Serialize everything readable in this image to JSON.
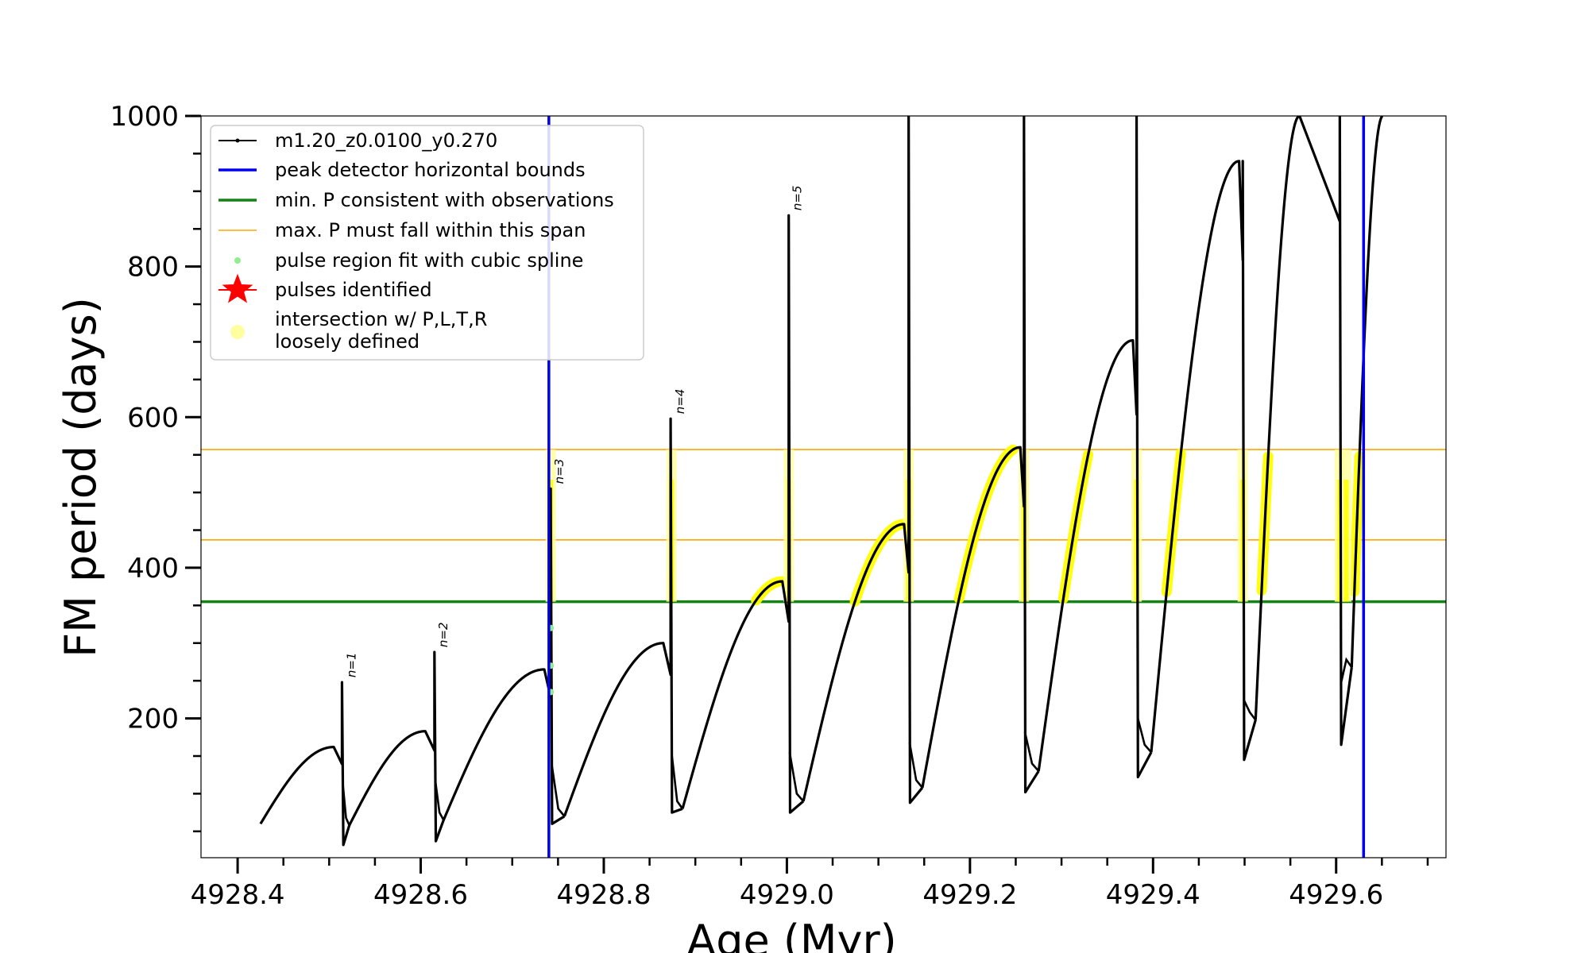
{
  "chart_data": {
    "type": "line",
    "xlabel": "Age (Myr)",
    "ylabel": "FM period (days)",
    "xlim": [
      4928.36,
      4929.72
    ],
    "ylim": [
      15,
      1000
    ],
    "x_ticks": [
      4928.4,
      4928.6,
      4928.8,
      4929.0,
      4929.2,
      4929.4,
      4929.6
    ],
    "x_tick_labels": [
      "4928.4",
      "4928.6",
      "4928.8",
      "4929.0",
      "4929.2",
      "4929.4",
      "4929.6"
    ],
    "x_minor_step": 0.05,
    "y_ticks": [
      200,
      400,
      600,
      800,
      1000
    ],
    "y_tick_labels": [
      "200",
      "400",
      "600",
      "800",
      "1000"
    ],
    "y_minor_step": 50,
    "grid": false,
    "legend_position": "top-left",
    "legend": [
      {
        "label": "m1.20_z0.0100_y0.270",
        "kind": "line-dot",
        "color": "#000000"
      },
      {
        "label": "peak detector horizontal bounds",
        "kind": "line",
        "color": "#0000ee"
      },
      {
        "label": "min. P consistent with observations",
        "kind": "line",
        "color": "#148214"
      },
      {
        "label": "max. P must fall within this span",
        "kind": "thin-line",
        "color": "#ffa500"
      },
      {
        "label": "pulse region fit with cubic spline",
        "kind": "dot",
        "color": "#90ee90"
      },
      {
        "label": "pulses identified",
        "kind": "star",
        "color": "#ff0000"
      },
      {
        "label": "intersection w/ P,L,T,R",
        "label2": "loosely defined",
        "kind": "big-dot",
        "color": "#ffffa0"
      }
    ],
    "vertical_bounds": [
      4928.74,
      4929.63
    ],
    "min_period": 355,
    "max_period_span": [
      437,
      557
    ],
    "colors": {
      "track": "#000000",
      "bounds": "#0000ee",
      "min_p": "#148214",
      "span": "#ffa500",
      "fit": "#90ee90",
      "intersection": "#ffff00",
      "intersection_soft": "#ffffa0"
    },
    "pulses": [
      {
        "label": "n=1",
        "age": 4928.515,
        "peak": 248
      },
      {
        "label": "n=2",
        "age": 4928.615,
        "peak": 288
      },
      {
        "label": "n=3",
        "age": 4928.742,
        "peak": 505
      },
      {
        "label": "n=4",
        "age": 4928.874,
        "peak": 598
      },
      {
        "label": "n=5",
        "age": 4929.002,
        "peak": 868
      }
    ],
    "track_cycles": [
      {
        "x0": 4928.425,
        "y0": 60,
        "xp": 4928.505,
        "yp": 162,
        "xe": 4928.514,
        "spike": 248,
        "dip": 32
      },
      {
        "x0": 4928.522,
        "y0": 58,
        "xp": 4928.605,
        "yp": 183,
        "xe": 4928.615,
        "spike": 288,
        "dip": 37
      },
      {
        "x0": 4928.625,
        "y0": 65,
        "xp": 4928.735,
        "yp": 265,
        "xe": 4928.742,
        "spike": 505,
        "dip": 60
      },
      {
        "x0": 4928.757,
        "y0": 70,
        "xp": 4928.865,
        "yp": 300,
        "xe": 4928.873,
        "spike": 598,
        "dip": 75
      },
      {
        "x0": 4928.886,
        "y0": 80,
        "xp": 4928.995,
        "yp": 382,
        "xe": 4929.002,
        "spike": 868,
        "dip": 75
      },
      {
        "x0": 4929.018,
        "y0": 90,
        "xp": 4929.128,
        "yp": 458,
        "xe": 4929.133,
        "spike": 1000,
        "dip": 88
      },
      {
        "x0": 4929.148,
        "y0": 108,
        "xp": 4929.255,
        "yp": 560,
        "xe": 4929.259,
        "spike": 1000,
        "dip": 102
      },
      {
        "x0": 4929.275,
        "y0": 130,
        "xp": 4929.378,
        "yp": 702,
        "xe": 4929.382,
        "spike": 1000,
        "dip": 122
      },
      {
        "x0": 4929.398,
        "y0": 155,
        "xp": 4929.494,
        "yp": 940,
        "xe": 4929.498,
        "spike": 940,
        "dip": 145
      },
      {
        "x0": 4929.512,
        "y0": 198,
        "xp": 4929.56,
        "yp": 1000,
        "xe": 4929.604,
        "spike": 1000,
        "dip": 165
      },
      {
        "x0": 4929.617,
        "y0": 268,
        "xp": 4929.651,
        "yp": 1000,
        "xe": 4929.651,
        "spike": 1000,
        "dip": 268
      }
    ],
    "spike_bars": [
      4928.742,
      4928.874,
      4929.002,
      4929.133,
      4929.259,
      4929.382,
      4929.498,
      4929.604,
      4929.611
    ]
  }
}
